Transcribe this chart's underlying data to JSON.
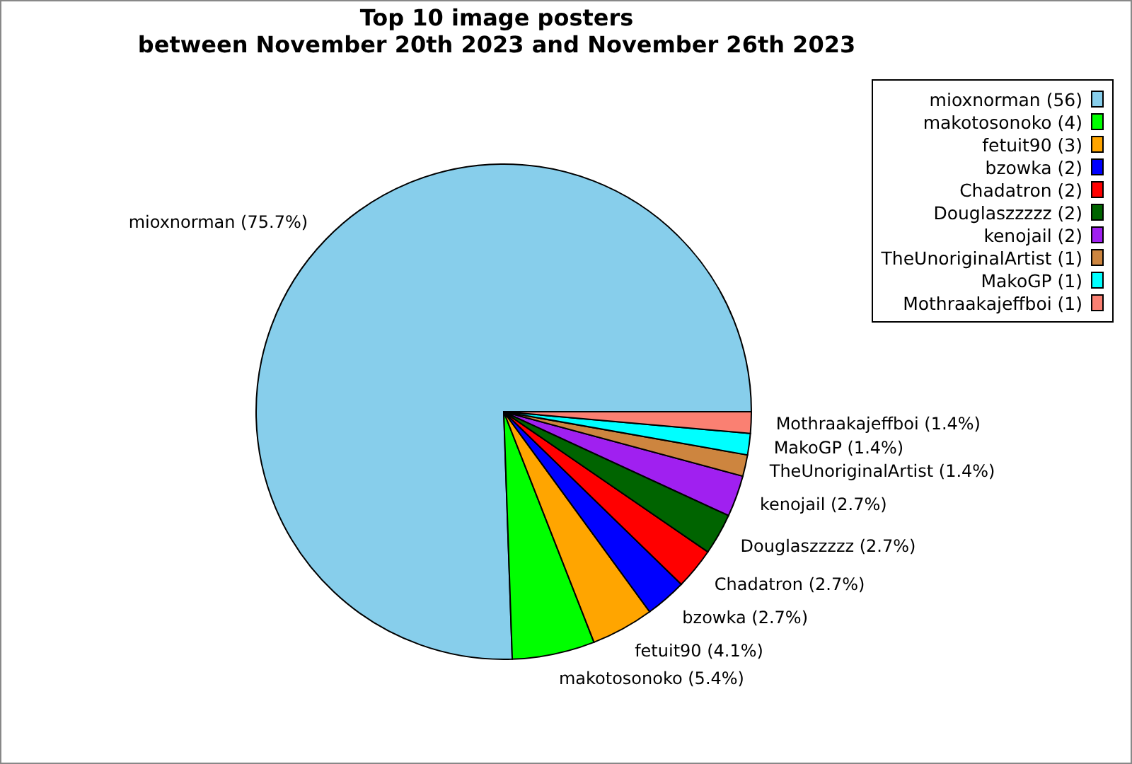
{
  "chart_data": {
    "type": "pie",
    "title": "Top 10 image posters\nbetween November 20th 2023 and November 26th 2023",
    "categories": [
      "mioxnorman (56)",
      "makotosonoko (4)",
      "fetuit90 (3)",
      "bzowka (2)",
      "Chadatron (2)",
      "Douglaszzzzz (2)",
      "kenojail (2)",
      "TheUnoriginalArtist (1)",
      "MakoGP (1)",
      "Mothraakajeffboi (1)"
    ],
    "values": [
      75.7,
      5.4,
      4.1,
      2.7,
      2.7,
      2.7,
      2.7,
      1.4,
      1.4,
      1.4
    ],
    "value_labels": [
      "mioxnorman (75.7%)",
      "makotosonoko (5.4%)",
      "fetuit90 (4.1%)",
      "bzowka (2.7%)",
      "Chadatron (2.7%)",
      "Douglaszzzzz (2.7%)",
      "kenojail (2.7%)",
      "TheUnoriginalArtist (1.4%)",
      "MakoGP (1.4%)",
      "Mothraakajeffboi (1.4%)"
    ],
    "colors": [
      "#87ceeb",
      "#00ff00",
      "#ffa500",
      "#0000ff",
      "#ff0000",
      "#006400",
      "#a020f0",
      "#cd853f",
      "#00ffff",
      "#fa8072"
    ],
    "legend": "top right"
  }
}
